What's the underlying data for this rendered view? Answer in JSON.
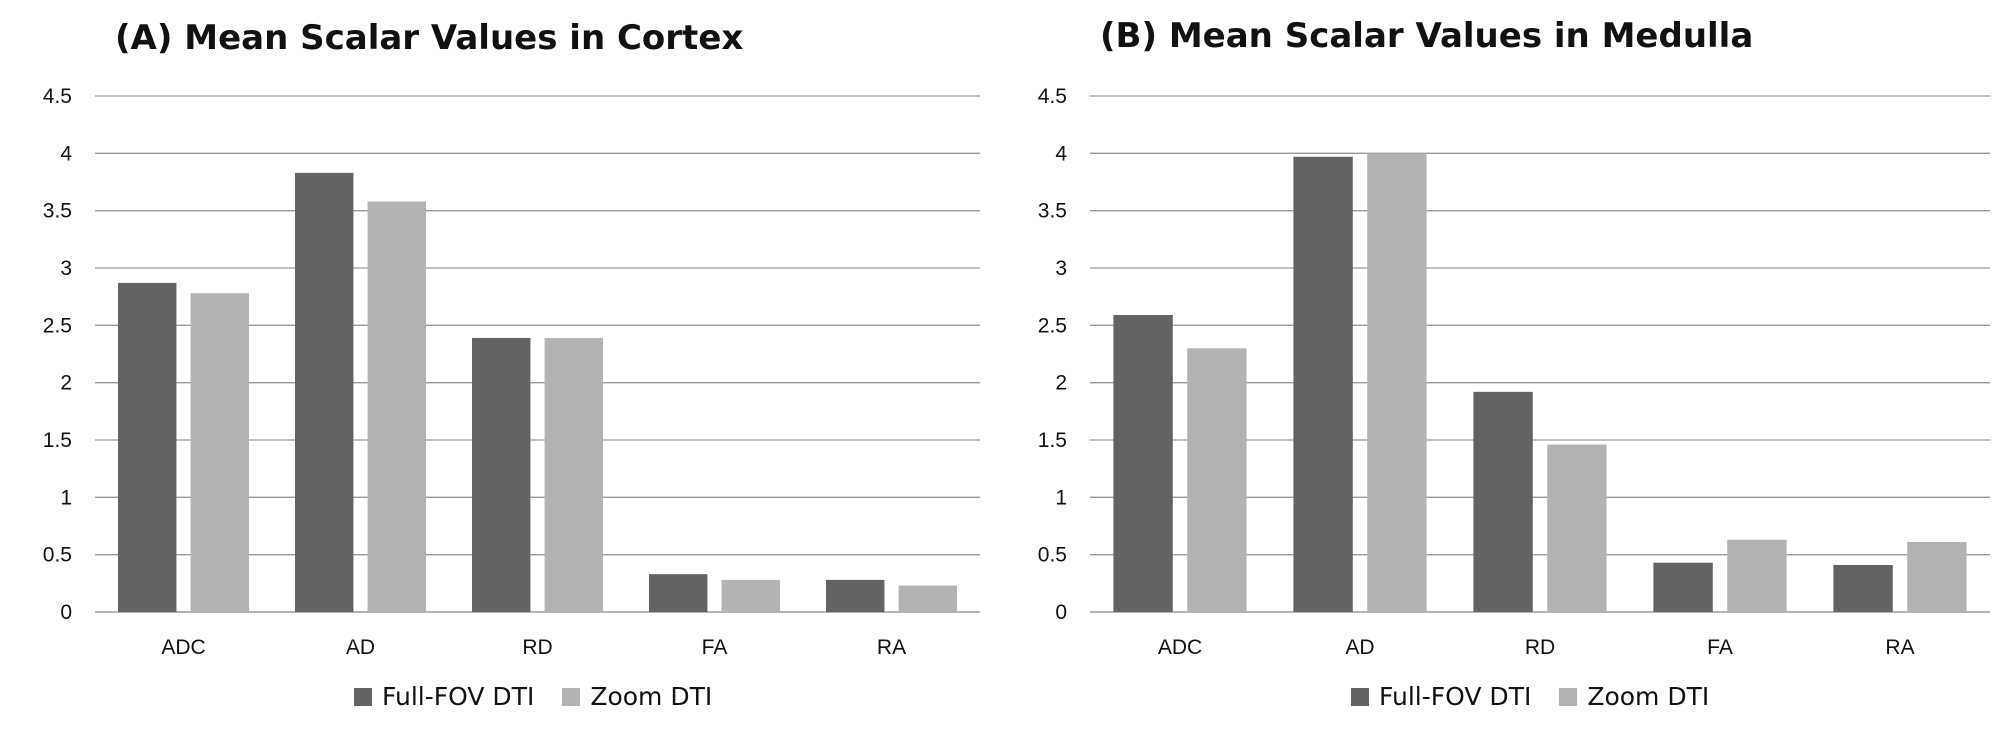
{
  "colors": {
    "full_fov": "#636363",
    "zoom": "#b3b3b3",
    "grid": "#999999",
    "axis": "#888888"
  },
  "chart_data": [
    {
      "type": "bar",
      "title": "(A) Mean Scalar Values in Cortex",
      "categories": [
        "ADC",
        "AD",
        "RD",
        "FA",
        "RA"
      ],
      "series": [
        {
          "name": "Full-FOV DTI",
          "values": [
            2.87,
            3.83,
            2.39,
            0.33,
            0.28
          ]
        },
        {
          "name": "Zoom DTI",
          "values": [
            2.78,
            3.58,
            2.39,
            0.28,
            0.23
          ]
        }
      ],
      "yticks": [
        "0",
        "0.5",
        "1",
        "1.5",
        "2",
        "2.5",
        "3",
        "3.5",
        "4",
        "4.5"
      ],
      "ylim": [
        0,
        4.5
      ],
      "xlabel": "",
      "ylabel": "",
      "legend_position": "bottom"
    },
    {
      "type": "bar",
      "title": "(B) Mean Scalar Values in Medulla",
      "categories": [
        "ADC",
        "AD",
        "RD",
        "FA",
        "RA"
      ],
      "series": [
        {
          "name": "Full-FOV DTI",
          "values": [
            2.59,
            3.97,
            1.92,
            0.43,
            0.41
          ]
        },
        {
          "name": "Zoom DTI",
          "values": [
            2.3,
            4.0,
            1.46,
            0.63,
            0.61
          ]
        }
      ],
      "yticks": [
        "0",
        "0.5",
        "1",
        "1.5",
        "2",
        "2.5",
        "3",
        "3.5",
        "4",
        "4.5"
      ],
      "ylim": [
        0,
        4.5
      ],
      "xlabel": "",
      "ylabel": "",
      "legend_position": "bottom"
    }
  ]
}
